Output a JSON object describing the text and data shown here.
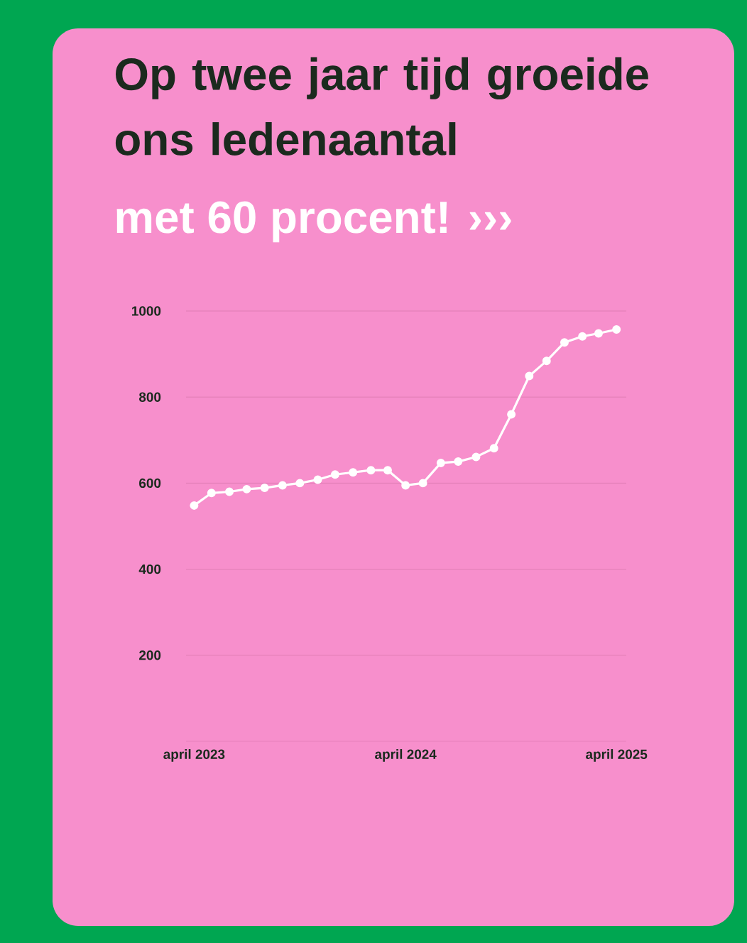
{
  "chart_data": {
    "type": "line",
    "title": "Op twee jaar tijd groeide ons ledenaantal",
    "subtitle": "met 60 procent! ›››",
    "x": [
      "2023-04",
      "2023-05",
      "2023-06",
      "2023-07",
      "2023-08",
      "2023-09",
      "2023-10",
      "2023-11",
      "2023-12",
      "2024-01",
      "2024-02",
      "2024-03",
      "2024-04",
      "2024-05",
      "2024-06",
      "2024-07",
      "2024-08",
      "2024-09",
      "2024-10",
      "2024-11",
      "2024-12",
      "2025-01",
      "2025-02",
      "2025-03",
      "2025-04"
    ],
    "values": [
      548,
      577,
      580,
      586,
      589,
      595,
      600,
      608,
      620,
      625,
      630,
      630,
      595,
      600,
      647,
      650,
      661,
      681,
      760,
      849,
      884,
      927,
      941,
      948,
      957
    ],
    "color": "#ffffff",
    "marker": "circle",
    "xlim": [
      "2023-03-18",
      "2025-04-18"
    ],
    "ylim": [
      0,
      1000
    ],
    "xticks": [
      {
        "value": "2023-04",
        "label": "april 2023"
      },
      {
        "value": "2024-04",
        "label": "april 2024"
      },
      {
        "value": "2025-04",
        "label": "april 2025"
      }
    ],
    "yticks": [
      200,
      400,
      600,
      800,
      1000
    ],
    "grid": "y"
  }
}
